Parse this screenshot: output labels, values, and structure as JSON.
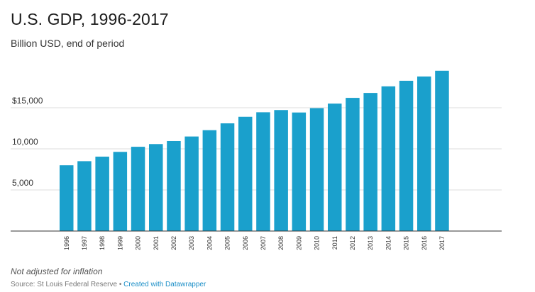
{
  "chart_data": {
    "type": "bar",
    "title": "U.S. GDP, 1996-2017",
    "subtitle": "Billion USD, end of period",
    "xlabel": "",
    "ylabel": "",
    "categories": [
      "1996",
      "1997",
      "1998",
      "1999",
      "2000",
      "2001",
      "2002",
      "2003",
      "2004",
      "2005",
      "2006",
      "2007",
      "2008",
      "2009",
      "2010",
      "2011",
      "2012",
      "2013",
      "2014",
      "2015",
      "2016",
      "2017"
    ],
    "values": [
      8000,
      8500,
      9050,
      9630,
      10250,
      10580,
      10950,
      11500,
      12270,
      13100,
      13900,
      14450,
      14720,
      14420,
      14950,
      15500,
      16200,
      16800,
      17600,
      18280,
      18800,
      19500
    ],
    "ylim": [
      0,
      20000
    ],
    "yticks": [
      {
        "value": 5000,
        "label": "5,000"
      },
      {
        "value": 10000,
        "label": "10,000"
      },
      {
        "value": 15000,
        "label": "$15,000"
      }
    ],
    "grid": true,
    "bar_color": "#1aa0cc"
  },
  "footer": {
    "note": "Not adjusted for inflation",
    "source": "Source: St Louis Federal Reserve • ",
    "credit": "Created with Datawrapper"
  }
}
